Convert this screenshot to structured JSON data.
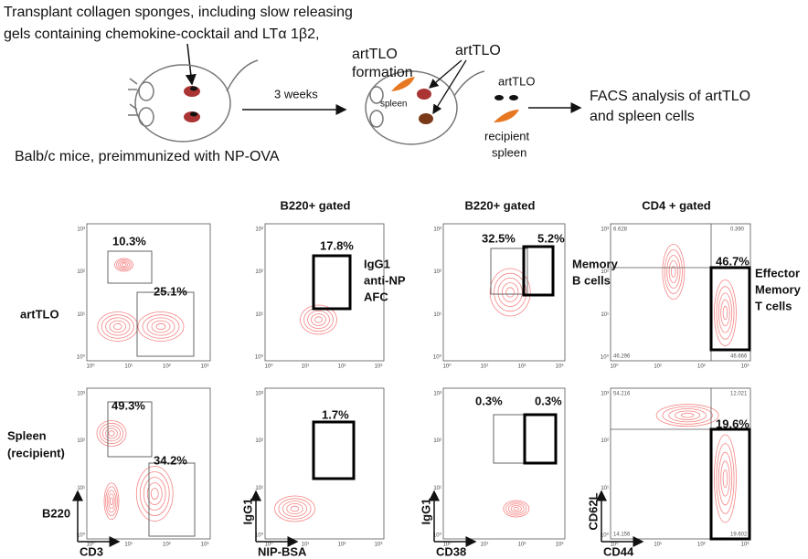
{
  "schematic": {
    "instruction": [
      "Transplant collagen sponges, including slow releasing",
      "gels containing chemokine-cocktail and LTα 1β2,"
    ],
    "mice": "Balb/c mice, preimmunized with NP-OVA",
    "interval": "3 weeks",
    "formation": [
      "artTLO",
      "formation"
    ],
    "artTLO": "artTLO",
    "spleen": "spleen",
    "explant": "artTLO",
    "recipient": [
      "recipient",
      "spleen"
    ],
    "analysis": [
      "FACS analysis of artTLO",
      "and spleen cells"
    ]
  },
  "facs": {
    "column_headers": [
      "B220+ gated",
      "B220+ gated",
      "CD4 + gated"
    ],
    "row_labels": [
      [
        "artTLO"
      ],
      [
        "Spleen",
        "(recipient)"
      ]
    ],
    "axes": [
      {
        "y": "B220",
        "x": "CD3"
      },
      {
        "y": "IgG1",
        "x": "NIP-BSA"
      },
      {
        "y": "IgG1",
        "x": "CD38"
      },
      {
        "y": "CD62L",
        "x": "CD44"
      }
    ],
    "tick_labels": [
      "10⁰",
      "10¹",
      "10²",
      "10³"
    ],
    "gates": [
      [
        [
          "10.3%",
          "25.1%"
        ],
        [
          "17.8%"
        ],
        [
          "32.5%",
          "5.2%"
        ],
        [
          "46.7%"
        ]
      ],
      [
        [
          "49.3%",
          "34.2%"
        ],
        [
          "1.7%"
        ],
        [
          "0.3%",
          "0.3%"
        ],
        [
          "19.6%"
        ]
      ]
    ],
    "population_labels": [
      [
        "IgG1",
        "anti-NP",
        "AFC"
      ],
      [
        "Memory",
        "B cells"
      ],
      [
        "Effector",
        "Memory",
        "T cells"
      ]
    ],
    "quadrant_values": [
      [
        "6.628",
        "0.390",
        "46.296",
        "46.666"
      ],
      [
        "54.216",
        "12.021",
        "14.156",
        "19.602"
      ]
    ]
  }
}
